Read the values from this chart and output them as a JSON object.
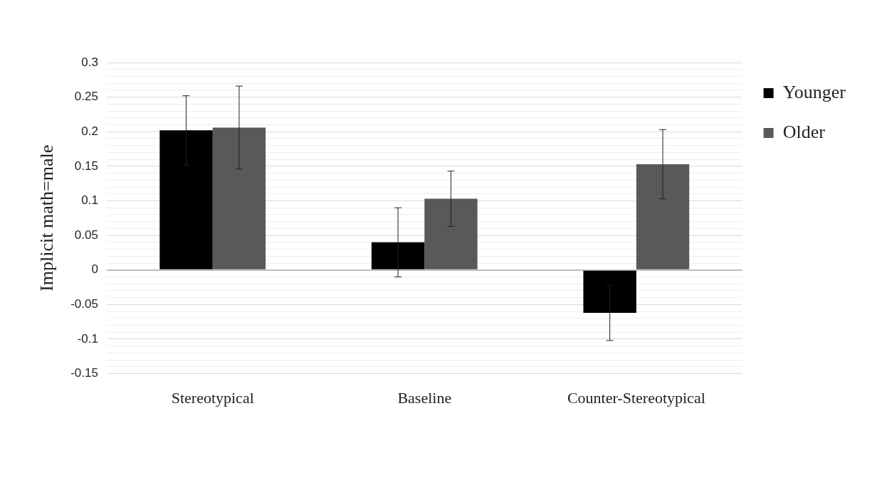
{
  "chart_data": {
    "type": "bar",
    "ylabel": "Implicit math=male",
    "categories": [
      "Stereotypical",
      "Baseline",
      "Counter-Stereotypical"
    ],
    "series": [
      {
        "name": "Younger",
        "color": "#000000",
        "values": [
          0.202,
          0.04,
          -0.062
        ],
        "errors": [
          0.05,
          0.05,
          0.04
        ]
      },
      {
        "name": "Older",
        "color": "#595959",
        "values": [
          0.206,
          0.103,
          0.153
        ],
        "errors": [
          0.06,
          0.04,
          0.05
        ]
      }
    ],
    "ylim": [
      -0.15,
      0.3
    ],
    "yticks": [
      -0.15,
      {
        "value": -0.14,
        "label": null
      },
      {
        "value": -0.13,
        "label": null
      },
      {
        "value": -0.12,
        "label": null
      },
      {
        "value": -0.11,
        "label": null
      },
      -0.1,
      {
        "value": -0.09,
        "label": null
      },
      {
        "value": -0.08,
        "label": null
      },
      {
        "value": -0.07,
        "label": null
      },
      {
        "value": -0.06,
        "label": null
      },
      -0.05,
      {
        "value": -0.04,
        "label": null
      },
      {
        "value": -0.03,
        "label": null
      },
      {
        "value": -0.02,
        "label": null
      },
      {
        "value": -0.01,
        "label": null
      },
      0,
      {
        "value": 0.01,
        "label": null
      },
      {
        "value": 0.02,
        "label": null
      },
      {
        "value": 0.03,
        "label": null
      },
      {
        "value": 0.04,
        "label": null
      },
      0.05,
      {
        "value": 0.06,
        "label": null
      },
      {
        "value": 0.07,
        "label": null
      },
      {
        "value": 0.08,
        "label": null
      },
      {
        "value": 0.09,
        "label": null
      },
      0.1,
      {
        "value": 0.11,
        "label": null
      },
      {
        "value": 0.12,
        "label": null
      },
      {
        "value": 0.13,
        "label": null
      },
      {
        "value": 0.14,
        "label": null
      },
      0.15,
      {
        "value": 0.16,
        "label": null
      },
      {
        "value": 0.17,
        "label": null
      },
      {
        "value": 0.18,
        "label": null
      },
      {
        "value": 0.19,
        "label": null
      },
      0.2,
      {
        "value": 0.21,
        "label": null
      },
      {
        "value": 0.22,
        "label": null
      },
      {
        "value": 0.23,
        "label": null
      },
      {
        "value": 0.24,
        "label": null
      },
      0.25,
      {
        "value": 0.26,
        "label": null
      },
      {
        "value": 0.27,
        "label": null
      },
      {
        "value": 0.28,
        "label": null
      },
      {
        "value": 0.29,
        "label": null
      },
      0.3
    ],
    "grid": "y",
    "legend": "right"
  }
}
